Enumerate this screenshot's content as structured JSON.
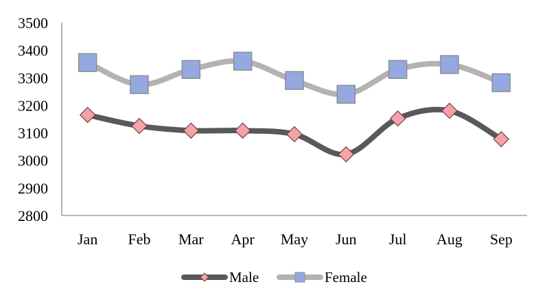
{
  "chart_data": {
    "type": "line",
    "title": "",
    "xlabel": "",
    "ylabel": "",
    "categories": [
      "Jan",
      "Feb",
      "Mar",
      "Apr",
      "May",
      "Jun",
      "Jul",
      "Aug",
      "Sep"
    ],
    "ylim": [
      2800,
      3500
    ],
    "yticks": [
      "2800",
      "2900",
      "3000",
      "3100",
      "3200",
      "3300",
      "3400",
      "3500"
    ],
    "grid": false,
    "smooth": true,
    "legend_position": "bottom-center",
    "series": [
      {
        "name": "Male",
        "values": [
          3165,
          3125,
          3108,
          3108,
          3095,
          3022,
          3152,
          3180,
          3077
        ],
        "line_color": "#595959",
        "marker": "diamond",
        "marker_fill": "#f4a3a8",
        "marker_stroke": "#7a3c44"
      },
      {
        "name": "Female",
        "values": [
          3355,
          3275,
          3330,
          3360,
          3290,
          3240,
          3330,
          3348,
          3282
        ],
        "line_color": "#b3b3b3",
        "marker": "square",
        "marker_fill": "#94a9e0",
        "marker_stroke": "#8e8e8e"
      }
    ]
  }
}
